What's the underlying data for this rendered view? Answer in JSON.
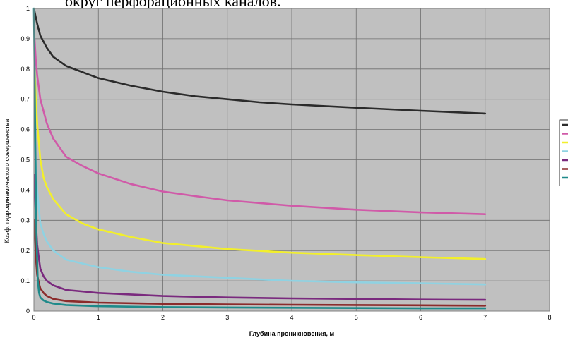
{
  "caption": "округ перфорационных каналов.",
  "chart_data": {
    "type": "line",
    "title": "",
    "xlabel": "Глубина проникновения, м",
    "ylabel": "Коэф. гидродинамического совершенства",
    "xlim": [
      0,
      8
    ],
    "ylim": [
      0,
      1
    ],
    "xticks": [
      "0",
      "1",
      "2",
      "3",
      "4",
      "5",
      "6",
      "7",
      "8"
    ],
    "yticks": [
      "0",
      "0.1",
      "0.2",
      "0.3",
      "0.4",
      "0.5",
      "0.6",
      "0.7",
      "0.8",
      "0.9",
      "1"
    ],
    "grid": true,
    "legend": "right",
    "plot_background": "#c0c0c0",
    "series": [
      {
        "color": "#2b2b2b",
        "x": [
          0.01,
          0.05,
          0.1,
          0.2,
          0.3,
          0.5,
          0.75,
          1,
          1.5,
          2,
          2.5,
          3,
          3.5,
          4,
          5,
          6,
          7
        ],
        "y": [
          0.99,
          0.95,
          0.91,
          0.87,
          0.84,
          0.81,
          0.79,
          0.77,
          0.745,
          0.725,
          0.71,
          0.7,
          0.69,
          0.683,
          0.672,
          0.662,
          0.653
        ]
      },
      {
        "color": "#d05aa8",
        "x": [
          0.01,
          0.03,
          0.05,
          0.1,
          0.2,
          0.3,
          0.5,
          0.75,
          1,
          1.5,
          2,
          2.5,
          3,
          4,
          5,
          6,
          7
        ],
        "y": [
          0.9,
          0.83,
          0.78,
          0.7,
          0.62,
          0.57,
          0.51,
          0.48,
          0.455,
          0.42,
          0.395,
          0.38,
          0.366,
          0.348,
          0.335,
          0.326,
          0.32
        ]
      },
      {
        "color": "#f2ef2c",
        "x": [
          0.01,
          0.03,
          0.05,
          0.1,
          0.15,
          0.2,
          0.3,
          0.5,
          0.75,
          1,
          1.5,
          2,
          3,
          4,
          5,
          6,
          7
        ],
        "y": [
          0.8,
          0.7,
          0.62,
          0.5,
          0.44,
          0.41,
          0.37,
          0.32,
          0.29,
          0.27,
          0.245,
          0.225,
          0.205,
          0.193,
          0.185,
          0.178,
          0.172
        ]
      },
      {
        "color": "#8fd2e2",
        "x": [
          0.01,
          0.03,
          0.05,
          0.08,
          0.1,
          0.15,
          0.2,
          0.3,
          0.5,
          1,
          1.5,
          2,
          3,
          4,
          5,
          6,
          7
        ],
        "y": [
          0.6,
          0.48,
          0.4,
          0.33,
          0.29,
          0.255,
          0.23,
          0.2,
          0.17,
          0.145,
          0.13,
          0.12,
          0.11,
          0.1,
          0.095,
          0.092,
          0.088
        ]
      },
      {
        "color": "#7a2a7e",
        "x": [
          0.01,
          0.03,
          0.05,
          0.08,
          0.1,
          0.15,
          0.2,
          0.3,
          0.5,
          1,
          2,
          3,
          4,
          5,
          6,
          7
        ],
        "y": [
          0.45,
          0.3,
          0.22,
          0.17,
          0.14,
          0.115,
          0.1,
          0.085,
          0.07,
          0.06,
          0.05,
          0.045,
          0.042,
          0.04,
          0.038,
          0.037
        ]
      },
      {
        "color": "#8b2b2b",
        "x": [
          0.01,
          0.03,
          0.05,
          0.08,
          0.1,
          0.15,
          0.2,
          0.3,
          0.5,
          1,
          2,
          3,
          4,
          5,
          6,
          7
        ],
        "y": [
          0.3,
          0.18,
          0.12,
          0.09,
          0.075,
          0.06,
          0.05,
          0.04,
          0.033,
          0.028,
          0.024,
          0.022,
          0.021,
          0.02,
          0.019,
          0.018
        ]
      },
      {
        "color": "#1f8a8a",
        "x": [
          0,
          0.02,
          0.04,
          0.06,
          0.08,
          0.1,
          0.15,
          0.2,
          0.3,
          0.5,
          1,
          2,
          3,
          4,
          5,
          6,
          7
        ],
        "y": [
          1.0,
          0.6,
          0.25,
          0.1,
          0.06,
          0.045,
          0.035,
          0.03,
          0.025,
          0.02,
          0.016,
          0.013,
          0.012,
          0.011,
          0.01,
          0.009,
          0.009
        ]
      }
    ]
  }
}
